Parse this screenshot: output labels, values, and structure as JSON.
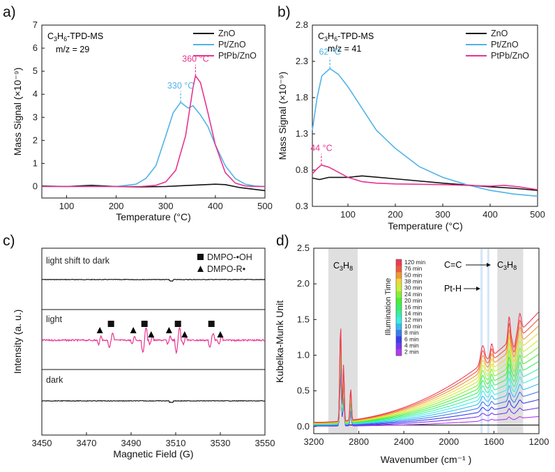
{
  "chart_data": [
    {
      "panel": "a)",
      "type": "line",
      "title": "C3H6-TPD-MS",
      "annotation": "m/z = 29",
      "xlabel": "Temperature (°C)",
      "ylabel": "Mass Signal (×10⁻⁹)",
      "xlim": [
        50,
        500
      ],
      "ylim": [
        -0.5,
        7
      ],
      "xticks": [
        100,
        200,
        300,
        400,
        500
      ],
      "yticks": [
        0,
        1,
        2,
        3,
        4,
        5,
        6,
        7
      ],
      "legend_position": "top-right",
      "peak_labels": [
        {
          "text": "330 °C",
          "x": 330,
          "y": 3.65,
          "color": "#4fb3e8"
        },
        {
          "text": "360 °C",
          "x": 360,
          "y": 4.8,
          "color": "#e8338f"
        }
      ],
      "series": [
        {
          "name": "ZnO",
          "color": "#111111",
          "x": [
            50,
            100,
            150,
            200,
            250,
            300,
            350,
            400,
            420,
            450,
            500
          ],
          "y": [
            0.02,
            0.0,
            0.05,
            0.0,
            -0.02,
            0.0,
            0.05,
            0.1,
            0.08,
            -0.05,
            -0.18
          ]
        },
        {
          "name": "Pt/ZnO",
          "color": "#4fb3e8",
          "x": [
            50,
            200,
            240,
            260,
            280,
            300,
            315,
            330,
            345,
            355,
            370,
            385,
            400,
            420,
            440,
            460,
            480,
            500
          ],
          "y": [
            0.0,
            0.0,
            0.1,
            0.35,
            0.9,
            2.2,
            3.2,
            3.65,
            3.4,
            3.5,
            3.1,
            2.6,
            1.8,
            0.9,
            0.35,
            0.1,
            0.02,
            0.0
          ],
          "dashed_tail": true
        },
        {
          "name": "PtPb/ZnO",
          "color": "#e8338f",
          "x": [
            50,
            250,
            280,
            300,
            320,
            340,
            355,
            360,
            370,
            385,
            400,
            420,
            440,
            460,
            480,
            500
          ],
          "y": [
            0.0,
            0.0,
            0.05,
            0.2,
            0.7,
            2.2,
            4.3,
            4.8,
            4.5,
            3.2,
            1.8,
            0.6,
            0.15,
            0.02,
            0.0,
            0.0
          ]
        }
      ]
    },
    {
      "panel": "b)",
      "type": "line",
      "title": "C3H6-TPD-MS",
      "annotation": "m/z = 41",
      "xlabel": "Temperature (°C)",
      "ylabel": "Mass Signal (×10⁻⁹)",
      "xlim": [
        25,
        500
      ],
      "ylim": [
        0.3,
        2.8
      ],
      "xticks": [
        100,
        200,
        300,
        400,
        500
      ],
      "yticks": [
        0.3,
        0.8,
        1.3,
        1.8,
        2.3,
        2.8
      ],
      "legend_position": "top-right",
      "peak_labels": [
        {
          "text": "62 °C",
          "x": 62,
          "y": 2.2,
          "color": "#4fb3e8"
        },
        {
          "text": "44 °C",
          "x": 44,
          "y": 0.87,
          "color": "#e8338f"
        }
      ],
      "series": [
        {
          "name": "ZnO",
          "color": "#111111",
          "x": [
            25,
            40,
            60,
            100,
            130,
            200,
            300,
            400,
            450,
            500
          ],
          "y": [
            0.69,
            0.67,
            0.7,
            0.7,
            0.72,
            0.68,
            0.62,
            0.57,
            0.55,
            0.52
          ]
        },
        {
          "name": "Pt/ZnO",
          "color": "#4fb3e8",
          "x": [
            25,
            35,
            45,
            62,
            80,
            100,
            130,
            160,
            200,
            250,
            300,
            350,
            400,
            450,
            500
          ],
          "y": [
            1.35,
            1.8,
            2.1,
            2.2,
            2.12,
            1.95,
            1.65,
            1.35,
            1.1,
            0.85,
            0.7,
            0.6,
            0.52,
            0.47,
            0.44
          ]
        },
        {
          "name": "PtPb/ZnO",
          "color": "#e8338f",
          "x": [
            25,
            35,
            44,
            60,
            80,
            100,
            130,
            160,
            200,
            300,
            400,
            430,
            460,
            500
          ],
          "y": [
            0.75,
            0.82,
            0.87,
            0.84,
            0.77,
            0.7,
            0.64,
            0.62,
            0.61,
            0.6,
            0.58,
            0.59,
            0.57,
            0.53
          ]
        }
      ]
    },
    {
      "panel": "c)",
      "type": "line",
      "xlabel": "Magnetic Field (G)",
      "ylabel": "Intensity (a. u.)",
      "xlim": [
        3450,
        3550
      ],
      "xticks": [
        3450,
        3470,
        3490,
        3510,
        3530,
        3550
      ],
      "legend": [
        {
          "marker": "square",
          "name": "DMPO-•OH"
        },
        {
          "marker": "triangle",
          "name": "DMPO-R•"
        }
      ],
      "subpanels": [
        {
          "label": "light shift to dark",
          "color": "#111111"
        },
        {
          "label": "light",
          "color": "#e8338f"
        },
        {
          "label": "dark",
          "color": "#111111"
        }
      ],
      "epr_peaks": {
        "square": [
          3481,
          3496,
          3511,
          3526
        ],
        "triangle": [
          3476,
          3491,
          3499,
          3507,
          3514,
          3530
        ]
      }
    },
    {
      "panel": "d)",
      "type": "line",
      "xlabel": "Wavenumber (cm⁻¹ )",
      "ylabel": "Kubelka-Munk Unit",
      "xlim": [
        3200,
        1200
      ],
      "ylim": [
        -0.1,
        2.5
      ],
      "xticks": [
        3200,
        2800,
        2400,
        2000,
        1600,
        1200
      ],
      "yticks": [
        0.0,
        0.5,
        1.0,
        1.5,
        2.0,
        2.5
      ],
      "band_labels": [
        "C3H8",
        "C3H8",
        "C=C",
        "Pt-H"
      ],
      "shaded_regions": [
        {
          "from": 3070,
          "to": 2810,
          "color": "#d9d9d9"
        },
        {
          "from": 1720,
          "to": 1700,
          "color": "#cfe3f7"
        },
        {
          "from": 1660,
          "to": 1640,
          "color": "#cfe3f7"
        },
        {
          "from": 1570,
          "to": 1340,
          "color": "#d9d9d9"
        }
      ],
      "colorbar_title": "Illumination Time",
      "colorbar_labels": [
        "120 min",
        "76 min",
        "50 min",
        "38 min",
        "30 min",
        "24 min",
        "20 min",
        "16 min",
        "14 min",
        "12 min",
        "10 min",
        "8 min",
        "6 min",
        "4 min",
        "2 min"
      ],
      "series_times_min": [
        0,
        2,
        4,
        6,
        8,
        10,
        12,
        14,
        16,
        20,
        24,
        30,
        38,
        50,
        76,
        120
      ]
    }
  ]
}
